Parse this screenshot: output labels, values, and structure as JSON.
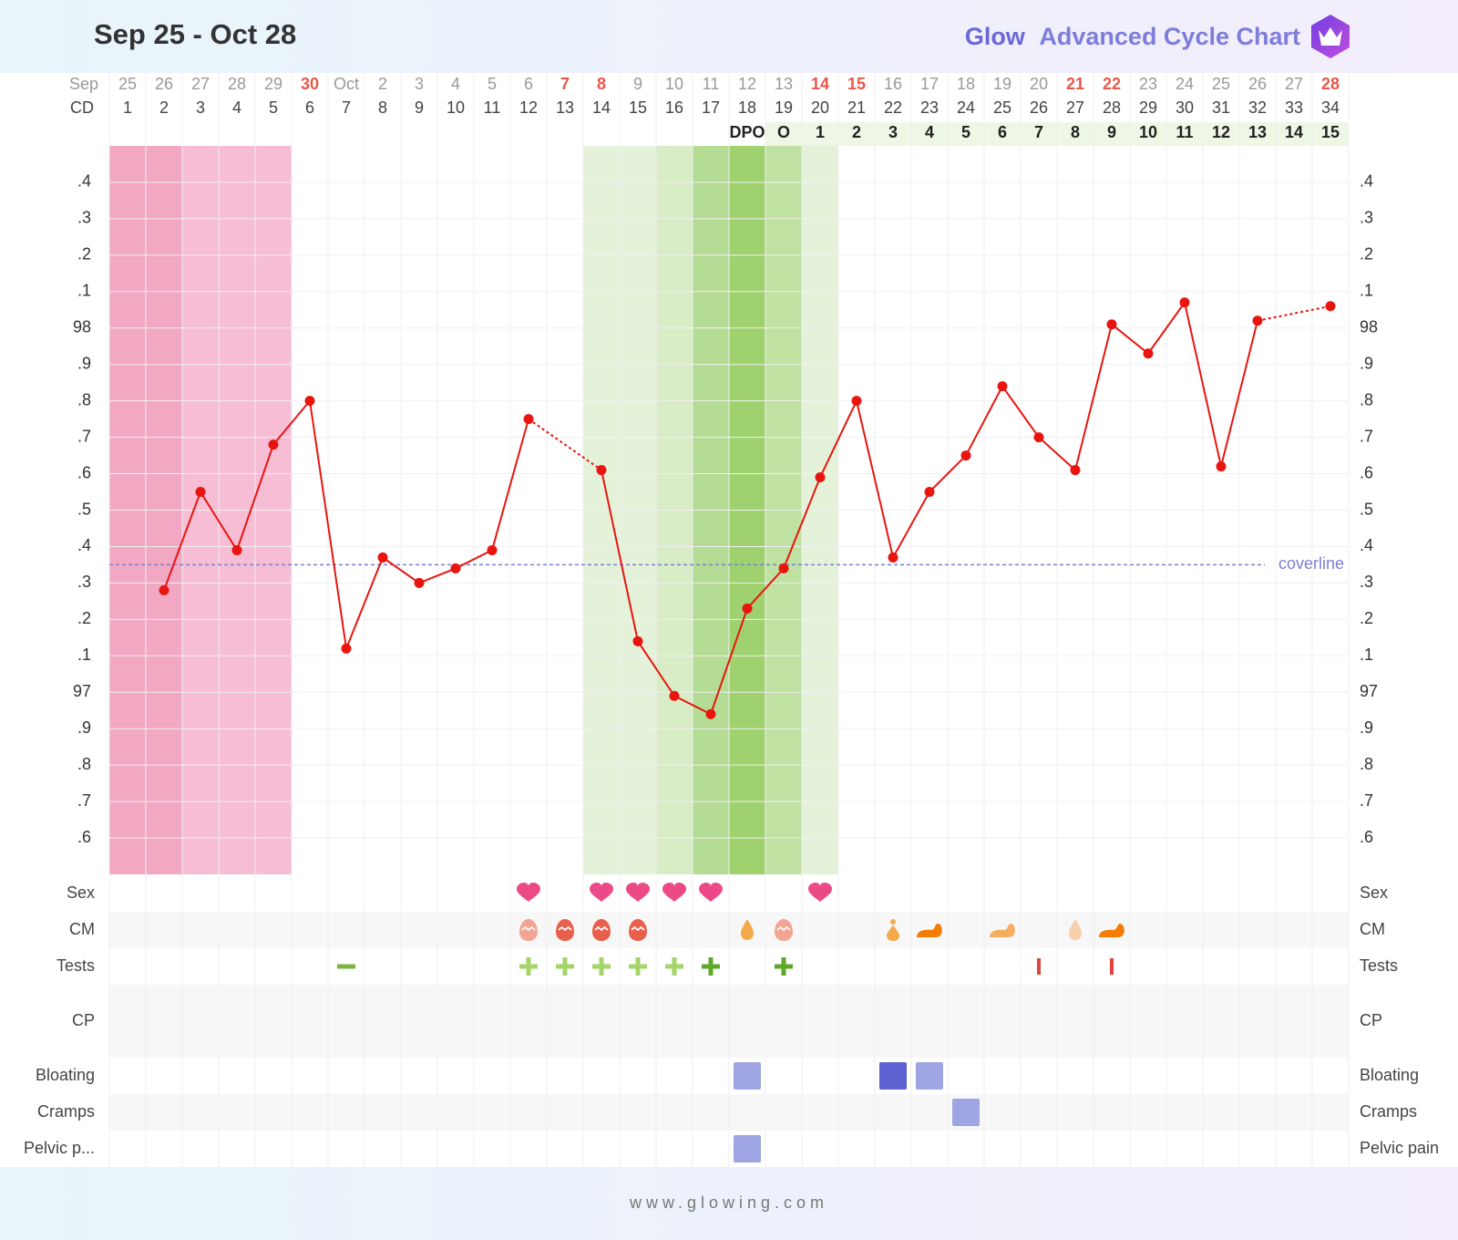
{
  "header": {
    "title": "Sep 25 - Oct 28",
    "brand": "Glow",
    "brand_subtitle": "Advanced Cycle Chart"
  },
  "chart_data": {
    "type": "line",
    "month_label": "Sep",
    "cd_label": "CD",
    "dpo_label": "DPO",
    "categories": [
      "25",
      "26",
      "27",
      "28",
      "29",
      "30",
      "Oct",
      "2",
      "3",
      "4",
      "5",
      "6",
      "7",
      "8",
      "9",
      "10",
      "11",
      "12",
      "13",
      "14",
      "15",
      "16",
      "17",
      "18",
      "19",
      "20",
      "21",
      "22",
      "23",
      "24",
      "25",
      "26",
      "27",
      "28"
    ],
    "highlighted_dates": [
      5,
      12,
      13,
      19,
      20,
      26,
      27,
      33
    ],
    "highlight_color": "#e8574a",
    "cycle_days": [
      1,
      2,
      3,
      4,
      5,
      6,
      7,
      8,
      9,
      10,
      11,
      12,
      13,
      14,
      15,
      16,
      17,
      18,
      19,
      20,
      21,
      22,
      23,
      24,
      25,
      26,
      27,
      28,
      29,
      30,
      31,
      32,
      33,
      34
    ],
    "dpo": [
      null,
      null,
      null,
      null,
      null,
      null,
      null,
      null,
      null,
      null,
      null,
      null,
      null,
      null,
      null,
      null,
      null,
      null,
      "O",
      1,
      2,
      3,
      4,
      5,
      6,
      7,
      8,
      9,
      10,
      11,
      12,
      13,
      14,
      15
    ],
    "values": [
      null,
      97.28,
      97.55,
      97.39,
      97.68,
      97.8,
      97.12,
      97.37,
      97.3,
      97.34,
      97.39,
      97.75,
      null,
      97.61,
      97.14,
      96.99,
      96.94,
      97.23,
      97.34,
      97.59,
      97.8,
      97.37,
      97.55,
      97.65,
      97.84,
      97.7,
      97.61,
      98.01,
      97.93,
      98.07,
      97.62,
      98.02,
      null,
      98.06
    ],
    "color": "#e8150f",
    "ylim": [
      96.5,
      98.5
    ],
    "yticks": [
      {
        "value": 98.4,
        "label": ".4"
      },
      {
        "value": 98.3,
        "label": ".3"
      },
      {
        "value": 98.2,
        "label": ".2"
      },
      {
        "value": 98.1,
        "label": ".1"
      },
      98,
      {
        "value": 97.9,
        "label": ".9"
      },
      {
        "value": 97.8,
        "label": ".8"
      },
      {
        "value": 97.7,
        "label": ".7"
      },
      {
        "value": 97.6,
        "label": ".6"
      },
      {
        "value": 97.5,
        "label": ".5"
      },
      {
        "value": 97.4,
        "label": ".4"
      },
      {
        "value": 97.3,
        "label": ".3"
      },
      {
        "value": 97.2,
        "label": ".2"
      },
      {
        "value": 97.1,
        "label": ".1"
      },
      97,
      {
        "value": 96.9,
        "label": ".9"
      },
      {
        "value": 96.8,
        "label": ".8"
      },
      {
        "value": 96.7,
        "label": ".7"
      },
      {
        "value": 96.6,
        "label": ".6"
      }
    ],
    "grid": true,
    "coverline": {
      "value": 97.35,
      "label": "coverline",
      "color": "#7b7fd0"
    },
    "shading": [
      "#f2a7c3",
      "#f2a7c3",
      "#f6bdd4",
      "#f6bdd4",
      "#f6bdd4",
      null,
      null,
      null,
      null,
      null,
      null,
      null,
      null,
      "#e5f2da",
      "#e5f2da",
      "#d8ecc6",
      "#b5dc95",
      "#9fd16f",
      "#bfe1a1",
      "#e5f2da",
      null,
      null,
      null,
      null,
      null,
      null,
      null,
      null,
      null,
      null,
      null,
      null,
      null,
      null
    ]
  },
  "symptoms": [
    {
      "label": "Sex",
      "entries": [
        {
          "day": 12,
          "shape": "heart",
          "color": "#ec4a86"
        },
        {
          "day": 14,
          "shape": "heart",
          "color": "#ec4a86"
        },
        {
          "day": 15,
          "shape": "heart",
          "color": "#ec4a86"
        },
        {
          "day": 16,
          "shape": "heart",
          "color": "#ec4a86"
        },
        {
          "day": 17,
          "shape": "heart",
          "color": "#ec4a86"
        },
        {
          "day": 20,
          "shape": "heart",
          "color": "#ec4a86"
        }
      ]
    },
    {
      "label": "CM",
      "entries": [
        {
          "day": 12,
          "shape": "egg",
          "color": "#f3a593"
        },
        {
          "day": 13,
          "shape": "egg",
          "color": "#e8604b"
        },
        {
          "day": 14,
          "shape": "egg",
          "color": "#e8604b"
        },
        {
          "day": 15,
          "shape": "egg",
          "color": "#e8604b"
        },
        {
          "day": 18,
          "shape": "drop",
          "color": "#f5a94b"
        },
        {
          "day": 19,
          "shape": "egg",
          "color": "#f3a593"
        },
        {
          "day": 22,
          "shape": "sticky",
          "color": "#f5a94b"
        },
        {
          "day": 23,
          "shape": "creamy",
          "color": "#f57c00"
        },
        {
          "day": 25,
          "shape": "creamy",
          "color": "#f7ad5e"
        },
        {
          "day": 27,
          "shape": "drop",
          "color": "#f8d0b0"
        },
        {
          "day": 28,
          "shape": "creamy",
          "color": "#f57c00"
        }
      ]
    },
    {
      "label": "Tests",
      "entries": [
        {
          "day": 7,
          "shape": "minus",
          "color": "#7cb342"
        },
        {
          "day": 12,
          "shape": "plus",
          "color": "#a5d46a"
        },
        {
          "day": 13,
          "shape": "plus",
          "color": "#a5d46a"
        },
        {
          "day": 14,
          "shape": "plus",
          "color": "#a5d46a"
        },
        {
          "day": 15,
          "shape": "plus",
          "color": "#a5d46a"
        },
        {
          "day": 16,
          "shape": "plus",
          "color": "#a5d46a"
        },
        {
          "day": 17,
          "shape": "plus",
          "color": "#5fa829"
        },
        {
          "day": 19,
          "shape": "plus",
          "color": "#5fa829"
        },
        {
          "day": 26,
          "shape": "bar",
          "color": "#e0443a"
        },
        {
          "day": 28,
          "shape": "bar",
          "color": "#e0443a"
        }
      ]
    },
    {
      "label": "CP",
      "entries": []
    },
    {
      "label": "Bloating",
      "entries": [
        {
          "day": 18,
          "shape": "square",
          "color": "#9fa5e3"
        },
        {
          "day": 22,
          "shape": "square",
          "color": "#5c60d0"
        },
        {
          "day": 23,
          "shape": "square",
          "color": "#9fa5e3"
        }
      ]
    },
    {
      "label": "Cramps",
      "entries": [
        {
          "day": 24,
          "shape": "square",
          "color": "#9fa5e3"
        }
      ]
    },
    {
      "label": "Pelvic p...",
      "full_label": "Pelvic pain",
      "entries": [
        {
          "day": 18,
          "shape": "square",
          "color": "#9fa5e3"
        }
      ]
    }
  ],
  "footer": "www.glowing.com"
}
